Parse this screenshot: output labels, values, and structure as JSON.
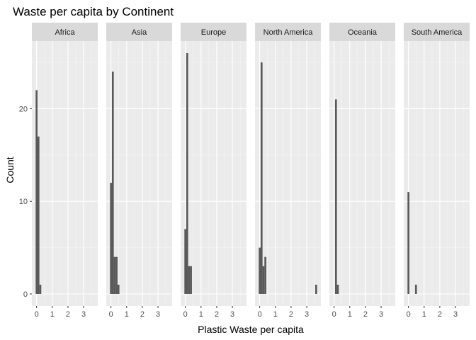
{
  "chart_data": {
    "type": "bar",
    "title": "Waste per capita by Continent",
    "xlabel": "Plastic Waste per capita",
    "ylabel": "Count",
    "xlim": [
      -0.3,
      3.9
    ],
    "ylim": [
      -1.3,
      27.3
    ],
    "xticks": [
      0,
      1,
      2,
      3
    ],
    "yticks": [
      0,
      10,
      20
    ],
    "bin_width": 0.12,
    "grid": true,
    "panels": [
      {
        "name": "Africa",
        "bins": [
          {
            "x": 0.0,
            "count": 22
          },
          {
            "x": 0.12,
            "count": 17
          },
          {
            "x": 0.24,
            "count": 1
          }
        ]
      },
      {
        "name": "Asia",
        "bins": [
          {
            "x": 0.0,
            "count": 12
          },
          {
            "x": 0.12,
            "count": 24
          },
          {
            "x": 0.24,
            "count": 4
          },
          {
            "x": 0.36,
            "count": 4
          },
          {
            "x": 0.48,
            "count": 1
          }
        ]
      },
      {
        "name": "Europe",
        "bins": [
          {
            "x": 0.0,
            "count": 7
          },
          {
            "x": 0.12,
            "count": 26
          },
          {
            "x": 0.24,
            "count": 3
          },
          {
            "x": 0.36,
            "count": 3
          }
        ]
      },
      {
        "name": "North America",
        "bins": [
          {
            "x": 0.0,
            "count": 5
          },
          {
            "x": 0.12,
            "count": 25
          },
          {
            "x": 0.24,
            "count": 3
          },
          {
            "x": 0.36,
            "count": 4
          },
          {
            "x": 3.6,
            "count": 1
          }
        ]
      },
      {
        "name": "Oceania",
        "bins": [
          {
            "x": 0.12,
            "count": 21
          },
          {
            "x": 0.24,
            "count": 1
          }
        ]
      },
      {
        "name": "South America",
        "bins": [
          {
            "x": 0.0,
            "count": 11
          },
          {
            "x": 0.48,
            "count": 1
          }
        ]
      }
    ]
  },
  "colors": {
    "panel_background": "#ebebeb",
    "strip_background": "#d9d9d9",
    "grid_major": "#ffffff",
    "grid_minor": "#f5f5f5",
    "bar_fill": "#595959",
    "tick": "#333333"
  }
}
